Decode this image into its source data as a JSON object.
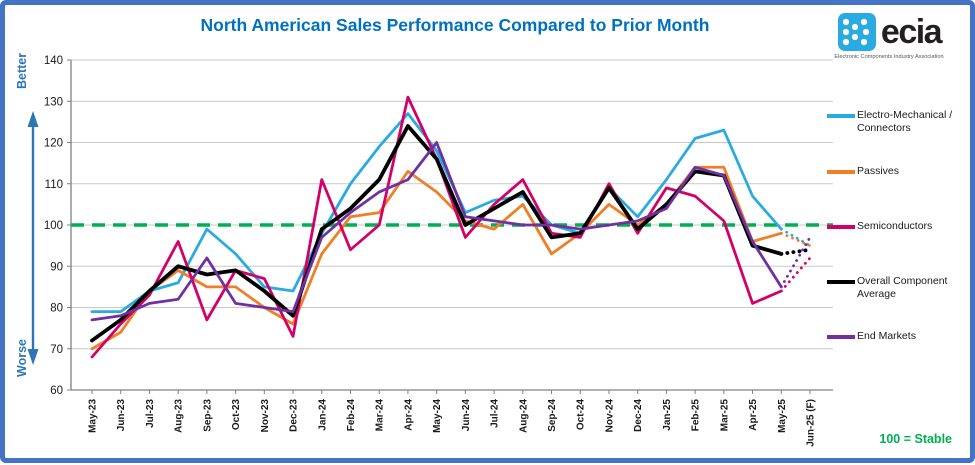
{
  "header": {
    "title": "North American Sales Performance Compared to Prior Month"
  },
  "logo": {
    "name": "ecia",
    "caption": "Electronic Components Industry Association",
    "icon_color": "#29ABE2"
  },
  "y_annotations": {
    "better": "Better",
    "worse": "Worse",
    "arrow_color": "#2E75B6"
  },
  "note": {
    "text": "100 = Stable",
    "color": "#00B050"
  },
  "chart_data": {
    "type": "line",
    "title": "North American Sales Performance Compared to Prior Month",
    "xlabel": "",
    "ylabel": "",
    "ylim": [
      60,
      140
    ],
    "y_tick_step": 10,
    "grid": true,
    "legend_position": "right",
    "reference_line": {
      "value": 100,
      "color": "#00B050",
      "style": "dashed",
      "meaning": "100 = Stable"
    },
    "forecast_point": "Jun-25 (F)",
    "last_segment_style": "dotted",
    "categories": [
      "May-23",
      "Jun-23",
      "Jul-23",
      "Aug-23",
      "Sep-23",
      "Oct-23",
      "Nov-23",
      "Dec-23",
      "Jan-24",
      "Feb-24",
      "Mar-24",
      "Apr-24",
      "May-24",
      "Jun-24",
      "Jul-24",
      "Aug-24",
      "Sep-24",
      "Oct-24",
      "Nov-24",
      "Dec-24",
      "Jan-25",
      "Feb-25",
      "Mar-25",
      "Apr-25",
      "May-25",
      "Jun-25 (F)"
    ],
    "series": [
      {
        "name": "Electro-Mechanical / Connectors",
        "color": "#29ABE2",
        "values": [
          79,
          79,
          84,
          86,
          99,
          93,
          85,
          84,
          98,
          110,
          119,
          127,
          118,
          103,
          106,
          107,
          100,
          98,
          109,
          102,
          111,
          121,
          123,
          107,
          99,
          95
        ]
      },
      {
        "name": "Passives",
        "color": "#F07E26",
        "values": [
          70,
          74,
          84,
          89,
          85,
          85,
          80,
          76,
          93,
          102,
          103,
          113,
          108,
          101,
          99,
          105,
          93,
          98,
          105,
          100,
          105,
          114,
          114,
          96,
          98,
          95
        ]
      },
      {
        "name": "Semiconductors",
        "color": "#D4006A",
        "values": [
          68,
          76,
          83,
          96,
          77,
          89,
          87,
          73,
          111,
          94,
          100,
          131,
          116,
          97,
          105,
          111,
          98,
          97,
          110,
          98,
          109,
          107,
          101,
          81,
          84,
          92
        ]
      },
      {
        "name": "Overall Component Average",
        "color": "#000000",
        "values": [
          72,
          77,
          84,
          90,
          88,
          89,
          84,
          78,
          99,
          104,
          111,
          124,
          116,
          100,
          104,
          108,
          97,
          98,
          109,
          99,
          105,
          113,
          112,
          95,
          93,
          94
        ]
      },
      {
        "name": "End Markets",
        "color": "#7030A0",
        "values": [
          77,
          78,
          81,
          82,
          92,
          81,
          80,
          79,
          97,
          103,
          108,
          111,
          120,
          102,
          101,
          100,
          100,
          99,
          100,
          101,
          104,
          114,
          112,
          96,
          85,
          97
        ]
      }
    ]
  }
}
